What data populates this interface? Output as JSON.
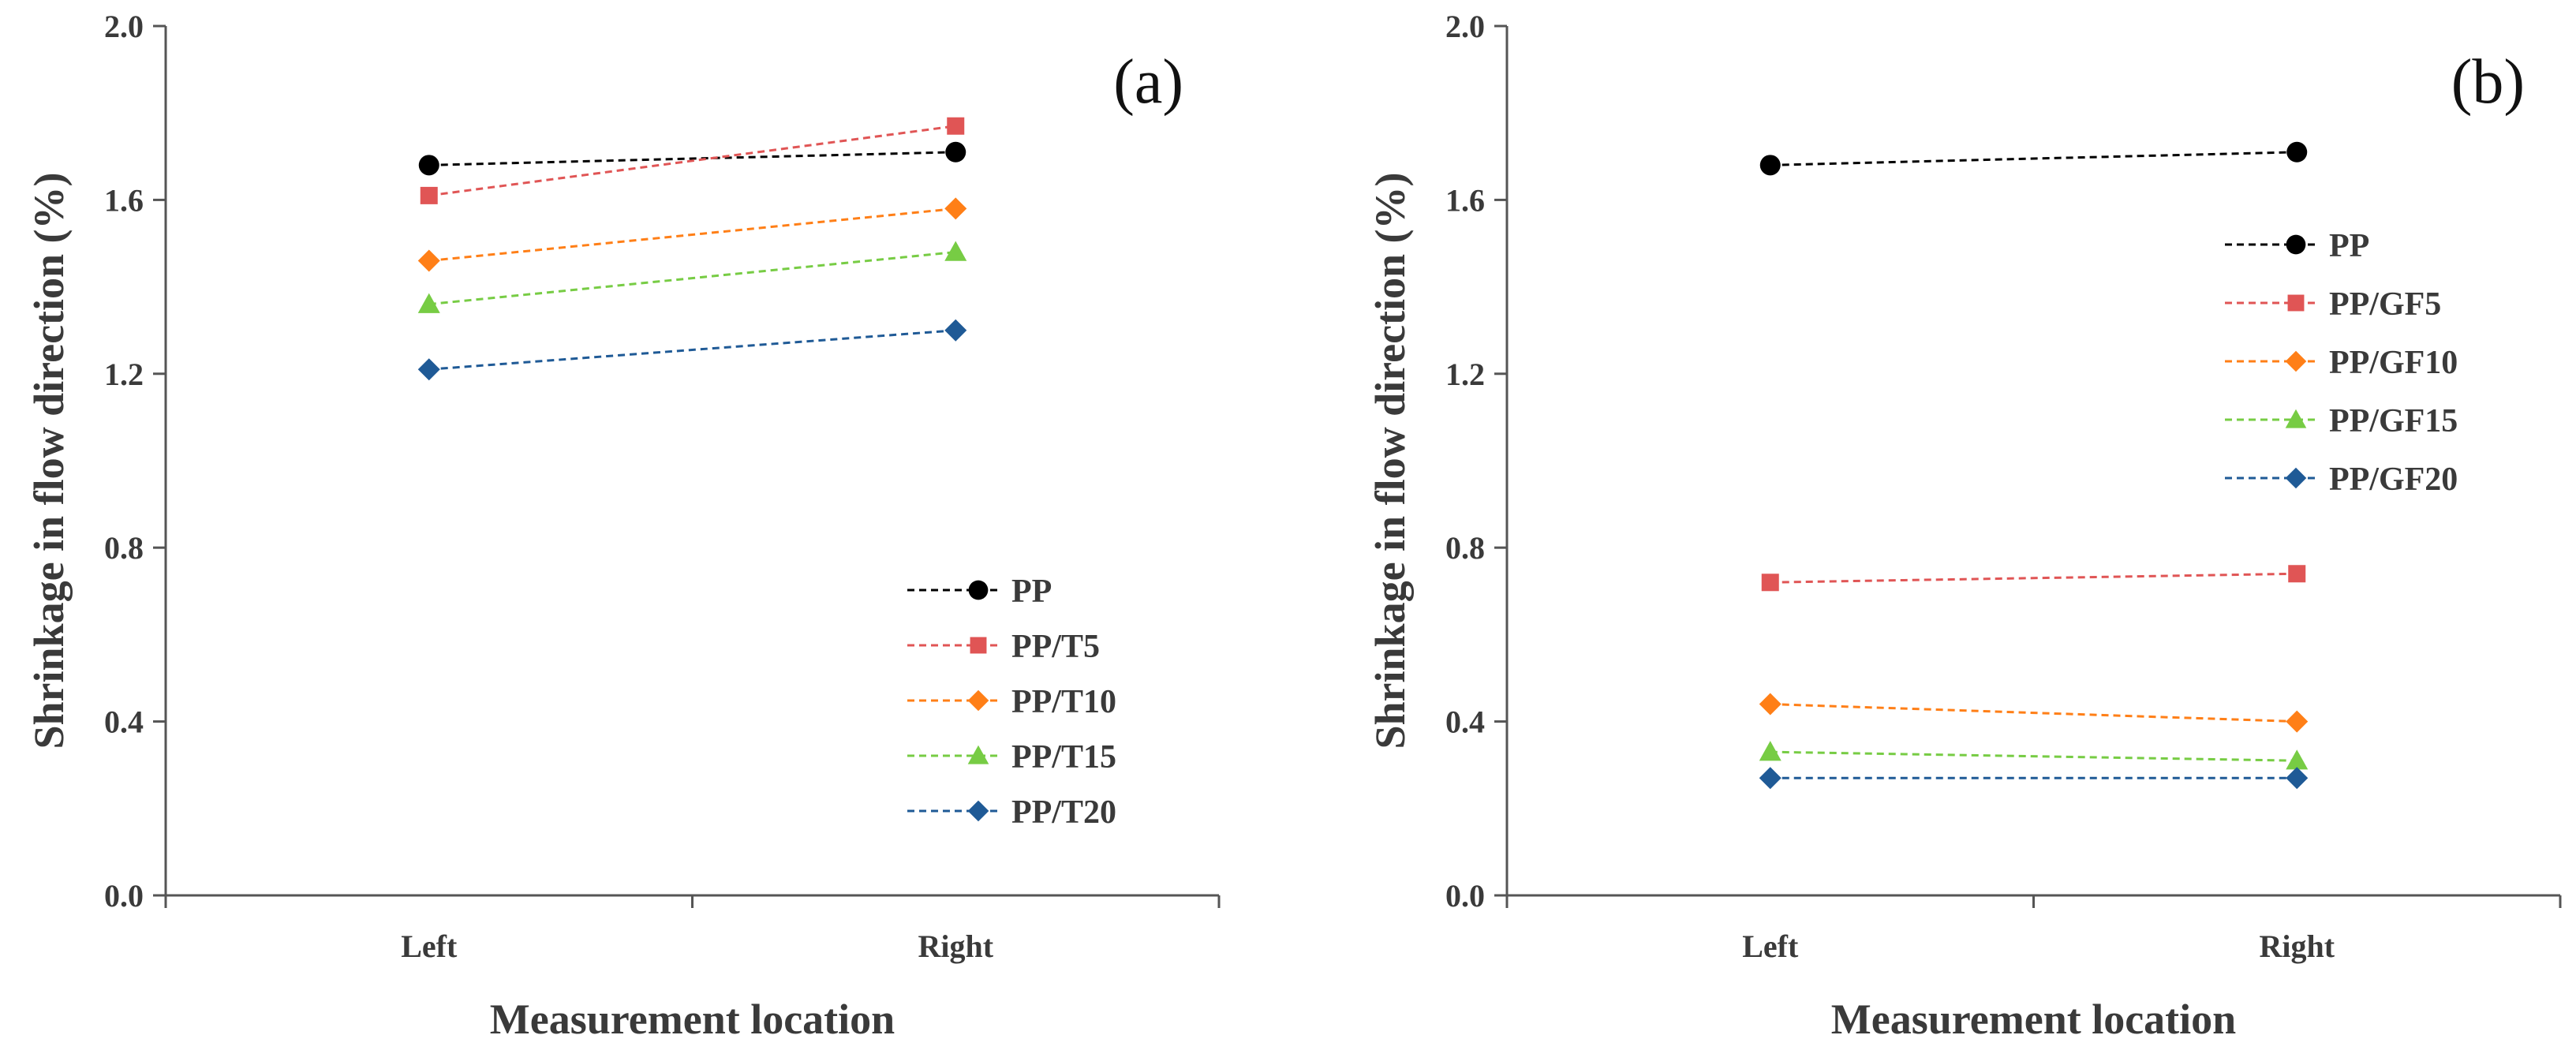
{
  "chart_data": [
    {
      "type": "line",
      "panel_label": "(a)",
      "categories": [
        "Left",
        "Right"
      ],
      "xlabel": "Measurement location",
      "ylabel": "Shrinkage in flow direction (%)",
      "ylim": [
        0,
        2.0
      ],
      "yticks": [
        "0.0",
        "0.4",
        "0.8",
        "1.2",
        "1.6",
        "2.0"
      ],
      "grid": false,
      "legend_position": "bottom-right",
      "series": [
        {
          "name": "PP",
          "values": [
            1.68,
            1.71
          ],
          "color": "#000000",
          "marker": "circle"
        },
        {
          "name": "PP/T5",
          "values": [
            1.61,
            1.77
          ],
          "color": "#e05555",
          "marker": "square"
        },
        {
          "name": "PP/T10",
          "values": [
            1.46,
            1.58
          ],
          "color": "#ff7f17",
          "marker": "diamond"
        },
        {
          "name": "PP/T15",
          "values": [
            1.36,
            1.48
          ],
          "color": "#77cc44",
          "marker": "triangle"
        },
        {
          "name": "PP/T20",
          "values": [
            1.21,
            1.3
          ],
          "color": "#1f5a96",
          "marker": "diamond"
        }
      ]
    },
    {
      "type": "line",
      "panel_label": "(b)",
      "categories": [
        "Left",
        "Right"
      ],
      "xlabel": "Measurement location",
      "ylabel": "Shrinkage in flow direction (%)",
      "ylim": [
        0,
        2.0
      ],
      "yticks": [
        "0.0",
        "0.4",
        "0.8",
        "1.2",
        "1.6",
        "2.0"
      ],
      "grid": false,
      "legend_position": "top-right",
      "series": [
        {
          "name": "PP",
          "values": [
            1.68,
            1.71
          ],
          "color": "#000000",
          "marker": "circle"
        },
        {
          "name": "PP/GF5",
          "values": [
            0.72,
            0.74
          ],
          "color": "#e05555",
          "marker": "square"
        },
        {
          "name": "PP/GF10",
          "values": [
            0.44,
            0.4
          ],
          "color": "#ff7f17",
          "marker": "diamond"
        },
        {
          "name": "PP/GF15",
          "values": [
            0.33,
            0.31
          ],
          "color": "#77cc44",
          "marker": "triangle"
        },
        {
          "name": "PP/GF20",
          "values": [
            0.27,
            0.27
          ],
          "color": "#1f5a96",
          "marker": "diamond"
        }
      ]
    }
  ]
}
